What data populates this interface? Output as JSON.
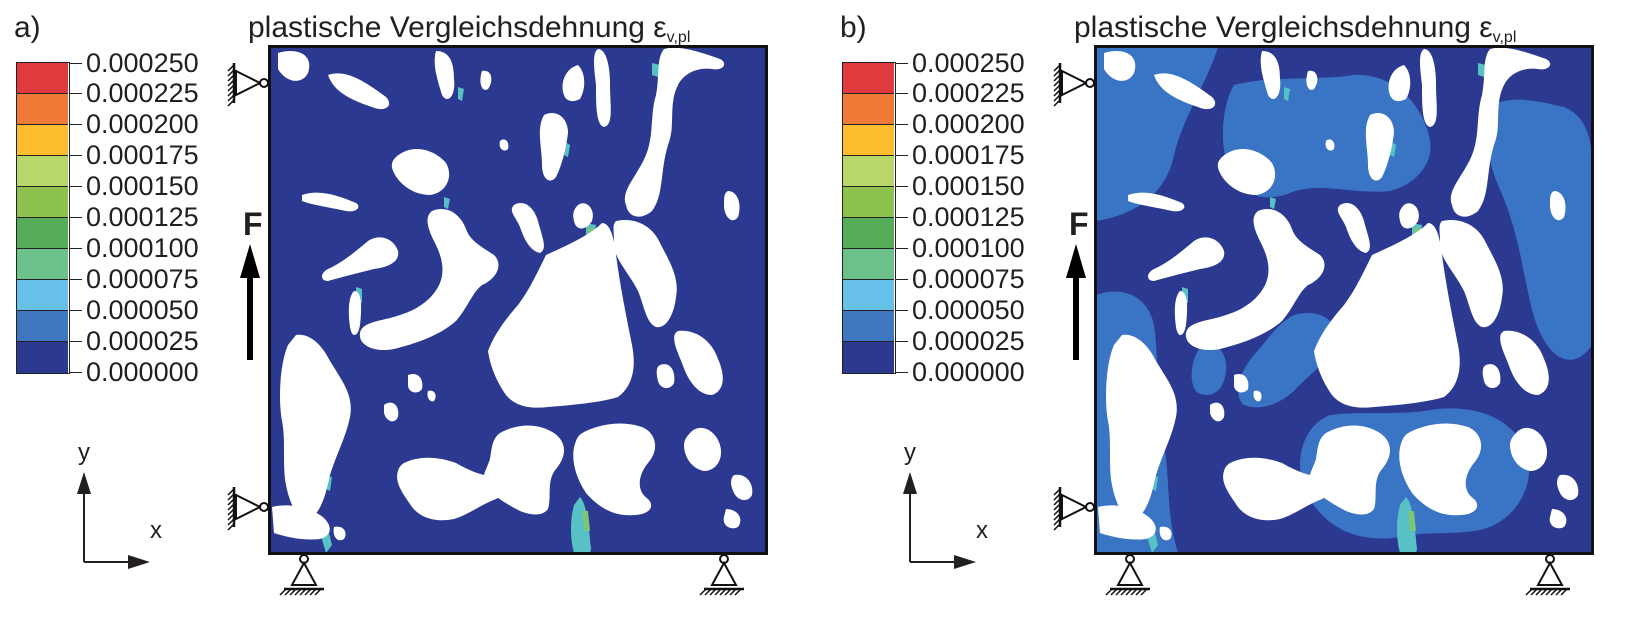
{
  "panels": [
    {
      "id": "a",
      "letter": "a)",
      "title": "plastische Vergleichsdehnung ε",
      "title_sub": "v,pl",
      "force_label": "F",
      "axis_x_label": "x",
      "axis_y_label": "y",
      "background_fill": "#2b3990",
      "halo_level": "none"
    },
    {
      "id": "b",
      "letter": "b)",
      "title": "plastische Vergleichsdehnung ε",
      "title_sub": "v,pl",
      "force_label": "F",
      "axis_x_label": "x",
      "axis_y_label": "y",
      "background_fill": "#2b3990",
      "halo_level": "0.000025-0.000050"
    }
  ],
  "legend": {
    "labels": [
      "0.000250",
      "0.000225",
      "0.000200",
      "0.000175",
      "0.000150",
      "0.000125",
      "0.000100",
      "0.000075",
      "0.000050",
      "0.000025",
      "0.000000"
    ],
    "colors": [
      "#e03a3e",
      "#ef7a38",
      "#fbbd2e",
      "#b9d66b",
      "#8dc24f",
      "#55ad5a",
      "#6cc08a",
      "#67c0e8",
      "#3f76c0",
      "#2b3990"
    ]
  },
  "colors": {
    "matrix_dark": "#2b3990",
    "matrix_light": "#3a74c4",
    "hotspot_cyan": "#57c1c6",
    "hotspot_green": "#7cc576",
    "pores": "#ffffff",
    "frame": "#111111"
  }
}
